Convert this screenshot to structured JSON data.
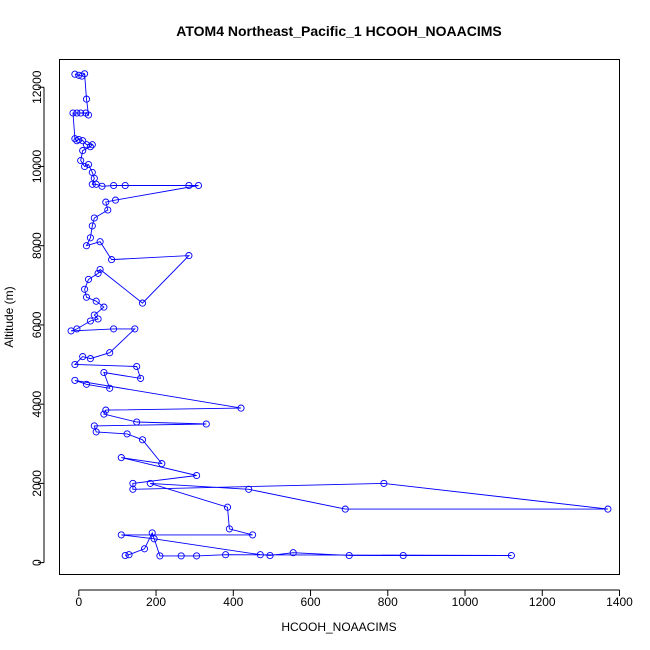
{
  "chart_data": {
    "type": "line",
    "title": "ATOM4 Northeast_Pacific_1 HCOOH_NOAACIMS",
    "xlabel": "HCOOH_NOAACIMS",
    "ylabel": "Altitude (m)",
    "xlim": [
      -50,
      1400
    ],
    "ylim": [
      -300,
      12700
    ],
    "xticks": [
      0,
      200,
      400,
      600,
      800,
      1000,
      1200,
      1400
    ],
    "yticks": [
      0,
      2000,
      4000,
      6000,
      8000,
      10000,
      12000
    ],
    "grid": false,
    "legend": "none",
    "color": "#0000ff",
    "series": [
      {
        "points": [
          [
            -10,
            12330
          ],
          [
            0,
            12300
          ],
          [
            8,
            12280
          ],
          [
            15,
            12340
          ],
          [
            20,
            11700
          ],
          [
            25,
            11300
          ],
          [
            18,
            11350
          ],
          [
            5,
            11350
          ],
          [
            -5,
            11350
          ],
          [
            -15,
            11350
          ],
          [
            -10,
            10700
          ],
          [
            -5,
            10650
          ],
          [
            0,
            10680
          ],
          [
            10,
            10650
          ],
          [
            20,
            10550
          ],
          [
            35,
            10550
          ],
          [
            30,
            10500
          ],
          [
            10,
            10400
          ],
          [
            5,
            10150
          ],
          [
            15,
            10000
          ],
          [
            25,
            10050
          ],
          [
            35,
            9850
          ],
          [
            40,
            9700
          ],
          [
            35,
            9550
          ],
          [
            45,
            9550
          ],
          [
            60,
            9500
          ],
          [
            90,
            9520
          ],
          [
            120,
            9520
          ],
          [
            285,
            9520
          ],
          [
            310,
            9520
          ],
          [
            95,
            9150
          ],
          [
            70,
            9100
          ],
          [
            75,
            8900
          ],
          [
            40,
            8700
          ],
          [
            35,
            8500
          ],
          [
            30,
            8200
          ],
          [
            20,
            8000
          ],
          [
            55,
            8100
          ],
          [
            85,
            7650
          ],
          [
            285,
            7750
          ],
          [
            165,
            6550
          ],
          [
            55,
            7400
          ],
          [
            50,
            7300
          ],
          [
            25,
            7150
          ],
          [
            15,
            6900
          ],
          [
            20,
            6700
          ],
          [
            45,
            6600
          ],
          [
            65,
            6450
          ],
          [
            40,
            6250
          ],
          [
            50,
            6150
          ],
          [
            30,
            6100
          ],
          [
            -5,
            5900
          ],
          [
            -20,
            5850
          ],
          [
            90,
            5900
          ],
          [
            145,
            5900
          ],
          [
            80,
            5300
          ],
          [
            30,
            5150
          ],
          [
            10,
            5200
          ],
          [
            -10,
            5000
          ],
          [
            150,
            4950
          ],
          [
            160,
            4650
          ],
          [
            65,
            4800
          ],
          [
            80,
            4400
          ],
          [
            20,
            4500
          ],
          [
            -10,
            4600
          ],
          [
            420,
            3900
          ],
          [
            70,
            3850
          ],
          [
            65,
            3750
          ],
          [
            150,
            3550
          ],
          [
            330,
            3500
          ],
          [
            40,
            3450
          ],
          [
            45,
            3300
          ],
          [
            125,
            3250
          ],
          [
            165,
            3100
          ],
          [
            215,
            2500
          ],
          [
            110,
            2650
          ],
          [
            305,
            2200
          ],
          [
            140,
            2000
          ],
          [
            140,
            1850
          ],
          [
            790,
            2000
          ],
          [
            1370,
            1350
          ],
          [
            690,
            1350
          ],
          [
            440,
            1850
          ],
          [
            185,
            2000
          ],
          [
            385,
            1400
          ],
          [
            390,
            850
          ],
          [
            450,
            700
          ],
          [
            110,
            700
          ],
          [
            195,
            600
          ],
          [
            470,
            200
          ],
          [
            495,
            180
          ],
          [
            555,
            250
          ],
          [
            700,
            180
          ],
          [
            840,
            180
          ],
          [
            1120,
            180
          ],
          [
            380,
            200
          ],
          [
            305,
            170
          ],
          [
            265,
            170
          ],
          [
            210,
            170
          ],
          [
            190,
            750
          ],
          [
            170,
            350
          ],
          [
            130,
            200
          ],
          [
            120,
            180
          ]
        ]
      }
    ]
  }
}
